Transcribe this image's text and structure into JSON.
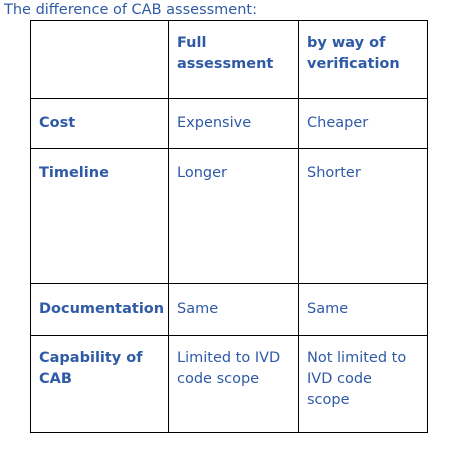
{
  "caption": "The difference of CAB assessment:",
  "table": {
    "header": [
      "",
      "Full assessment",
      "by way of verification"
    ],
    "rows": [
      {
        "label": "Cost",
        "full": "Expensive",
        "verification": "Cheaper"
      },
      {
        "label": "Timeline",
        "full": "Longer",
        "verification": "Shorter"
      },
      {
        "label": "Documentation",
        "full": "Same",
        "verification": "Same"
      },
      {
        "label": "Capability of CAB",
        "full": "Limited to IVD code scope",
        "verification": "Not limited to IVD code scope"
      }
    ]
  },
  "colors": {
    "text": "#2f5aa6",
    "border": "#000000"
  }
}
